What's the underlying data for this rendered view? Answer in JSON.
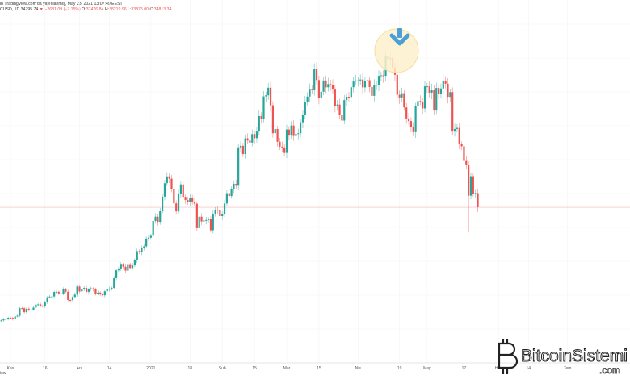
{
  "header": {
    "line1": "in TradingView.com'da yayınlanmış, May 23, 2021 13:07:49 EEST",
    "symbol": "CUSD, 1D",
    "last": "34795.74",
    "change_arrow": "▼",
    "change": "−2681.09 (−7.15%)",
    "o_label": "O:",
    "o": "37476.84",
    "h_label": "H:",
    "h": "38219.96",
    "l_label": "L:",
    "l": "33875.00",
    "c_label": "C:",
    "c": "34813.34"
  },
  "footer_note": "iew",
  "watermark": {
    "text": "BitcoinSistemi",
    "suffix": ".com"
  },
  "colors": {
    "up": "#26a69a",
    "down": "#ef5350",
    "price_line": "#f4b8b8",
    "highlight_fill": "#fdf1cc",
    "highlight_stroke": "#f3df9c",
    "arrow": "#4a9fd8"
  },
  "annotation": {
    "type": "down-arrow-icon in highlight circle",
    "date": "2021-04-14"
  },
  "chart_data": {
    "type": "candlestick",
    "start_date": "2020-10-28",
    "interval": "1D",
    "grid": true,
    "y_axis_visible": false,
    "current_price_line": 34795.74,
    "x_ticks": [
      {
        "label": "Kas",
        "date": "2020-11-01"
      },
      {
        "label": "16",
        "date": "2020-11-16"
      },
      {
        "label": "Ara",
        "date": "2020-12-01"
      },
      {
        "label": "14",
        "date": "2020-12-14"
      },
      {
        "label": "2021",
        "date": "2021-01-01"
      },
      {
        "label": "18",
        "date": "2021-01-18"
      },
      {
        "label": "Şub",
        "date": "2021-02-01"
      },
      {
        "label": "15",
        "date": "2021-02-15"
      },
      {
        "label": "Mar",
        "date": "2021-03-01"
      },
      {
        "label": "15",
        "date": "2021-03-15"
      },
      {
        "label": "Nis",
        "date": "2021-04-01"
      },
      {
        "label": "19",
        "date": "2021-04-19"
      },
      {
        "label": "May",
        "date": "2021-05-01"
      },
      {
        "label": "17",
        "date": "2021-05-17"
      },
      {
        "label": "Haz",
        "date": "2021-06-01"
      },
      {
        "label": "14",
        "date": "2021-06-14"
      },
      {
        "label": "Tem",
        "date": "2021-07-01"
      }
    ],
    "closes": [
      13270,
      13460,
      13560,
      13780,
      13740,
      13550,
      14020,
      14150,
      15590,
      15580,
      14830,
      15480,
      15330,
      15310,
      15700,
      16280,
      16320,
      16070,
      15960,
      16730,
      17660,
      17800,
      17820,
      18680,
      18710,
      18420,
      18370,
      19160,
      18720,
      17150,
      17140,
      17720,
      18180,
      19700,
      18770,
      19220,
      19440,
      18700,
      19150,
      19360,
      19170,
      18320,
      18550,
      18250,
      18040,
      18800,
      19170,
      19270,
      19440,
      21310,
      22800,
      23140,
      23870,
      23480,
      22740,
      23820,
      23240,
      23730,
      24710,
      26440,
      26280,
      27040,
      27360,
      28840,
      29000,
      29370,
      32190,
      33000,
      32020,
      34030,
      36820,
      39370,
      40670,
      40240,
      38240,
      35540,
      34010,
      37390,
      39140,
      36770,
      36180,
      35790,
      36630,
      35890,
      35470,
      30830,
      33000,
      32100,
      32280,
      32370,
      32570,
      30430,
      33470,
      34320,
      34270,
      33110,
      33520,
      35510,
      37470,
      36930,
      38290,
      39260,
      38900,
      46200,
      46480,
      44920,
      47910,
      47500,
      47110,
      48720,
      47940,
      49200,
      52150,
      51680,
      55890,
      56100,
      57540,
      54200,
      48890,
      49680,
      47260,
      46340,
      46190,
      45140,
      49590,
      48440,
      50350,
      48370,
      48750,
      48880,
      50970,
      52380,
      54880,
      55860,
      57330,
      57220,
      61190,
      59000,
      55640,
      56780,
      58920,
      57620,
      58240,
      58100,
      57350,
      54080,
      54340,
      52300,
      51300,
      55190,
      55830,
      55780,
      57630,
      58730,
      58920,
      58920,
      59100,
      57600,
      58760,
      58970,
      57670,
      56000,
      58000,
      58100,
      59800,
      59900,
      59800,
      63500,
      62970,
      63200,
      61400,
      60000,
      56200,
      55700,
      56500,
      53800,
      51700,
      51200,
      50100,
      49100,
      54000,
      55000,
      54900,
      53600,
      57800,
      57800,
      56600,
      57200,
      53200,
      57500,
      56400,
      57400,
      58900,
      58300,
      55800,
      56700,
      49200,
      49700,
      49900,
      46800,
      46400,
      43600,
      42900,
      37000,
      40700,
      37300,
      37476.84,
      34813.34
    ],
    "notable_wicks": [
      {
        "date": "2021-05-19",
        "low": 30000
      },
      {
        "date": "2021-05-23",
        "high": 38219.96,
        "low": 33875.0
      }
    ]
  }
}
